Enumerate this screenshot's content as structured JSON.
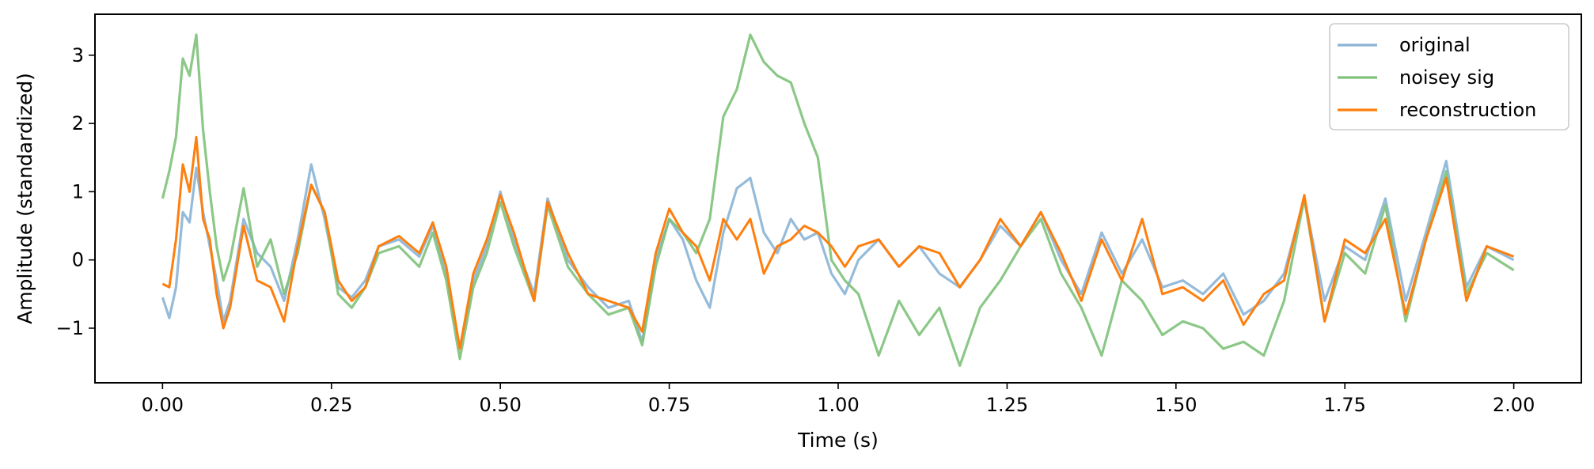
{
  "chart_data": {
    "type": "line",
    "title": "",
    "xlabel": "Time (s)",
    "ylabel": "Amplitude (standardized)",
    "xlim": [
      -0.1,
      2.1
    ],
    "ylim": [
      -1.8,
      3.6
    ],
    "xticks": [
      0.0,
      0.25,
      0.5,
      0.75,
      1.0,
      1.25,
      1.5,
      1.75,
      2.0
    ],
    "xtick_labels": [
      "0.00",
      "0.25",
      "0.50",
      "0.75",
      "1.00",
      "1.25",
      "1.50",
      "1.75",
      "2.00"
    ],
    "yticks": [
      -1,
      0,
      1,
      2,
      3
    ],
    "ytick_labels": [
      "−1",
      "0",
      "1",
      "2",
      "3"
    ],
    "grid": false,
    "legend_position": "top-right",
    "series": [
      {
        "name": "original",
        "color": "#8ab4d6",
        "x": [
          0,
          0.01,
          0.02,
          0.03,
          0.04,
          0.05,
          0.06,
          0.07,
          0.08,
          0.09,
          0.1,
          0.12,
          0.14,
          0.16,
          0.18,
          0.2,
          0.22,
          0.24,
          0.26,
          0.28,
          0.3,
          0.32,
          0.35,
          0.38,
          0.4,
          0.42,
          0.44,
          0.46,
          0.48,
          0.5,
          0.52,
          0.55,
          0.57,
          0.6,
          0.63,
          0.66,
          0.69,
          0.71,
          0.73,
          0.75,
          0.77,
          0.79,
          0.81,
          0.83,
          0.85,
          0.87,
          0.89,
          0.91,
          0.93,
          0.95,
          0.97,
          0.99,
          1.01,
          1.03,
          1.06,
          1.09,
          1.12,
          1.15,
          1.18,
          1.21,
          1.24,
          1.27,
          1.3,
          1.33,
          1.36,
          1.39,
          1.42,
          1.45,
          1.48,
          1.51,
          1.54,
          1.57,
          1.6,
          1.63,
          1.66,
          1.69,
          1.72,
          1.75,
          1.78,
          1.81,
          1.84,
          1.87,
          1.9,
          1.93,
          1.96,
          2.0
        ],
        "y": [
          -0.55,
          -0.85,
          -0.4,
          0.7,
          0.55,
          1.35,
          0.7,
          0.2,
          -0.3,
          -0.9,
          -0.6,
          0.6,
          0.1,
          -0.1,
          -0.6,
          0.3,
          1.4,
          0.6,
          -0.4,
          -0.55,
          -0.3,
          0.2,
          0.3,
          0.05,
          0.5,
          -0.2,
          -1.3,
          -0.3,
          0.2,
          1.0,
          0.3,
          -0.5,
          0.9,
          0.0,
          -0.4,
          -0.7,
          -0.6,
          -1.2,
          0.0,
          0.6,
          0.3,
          -0.3,
          -0.7,
          0.4,
          1.05,
          1.2,
          0.4,
          0.1,
          0.6,
          0.3,
          0.4,
          -0.2,
          -0.5,
          0.0,
          0.3,
          -0.1,
          0.2,
          -0.2,
          -0.4,
          0.0,
          0.5,
          0.2,
          0.7,
          0.0,
          -0.5,
          0.4,
          -0.2,
          0.3,
          -0.4,
          -0.3,
          -0.5,
          -0.2,
          -0.8,
          -0.6,
          -0.2,
          0.9,
          -0.6,
          0.2,
          0.0,
          0.9,
          -0.6,
          0.4,
          1.45,
          -0.4,
          0.2,
          0.0
        ]
      },
      {
        "name": "noisey sig",
        "color": "#7ec27a",
        "x": [
          0,
          0.01,
          0.02,
          0.03,
          0.04,
          0.05,
          0.06,
          0.07,
          0.08,
          0.09,
          0.1,
          0.12,
          0.14,
          0.16,
          0.18,
          0.2,
          0.22,
          0.24,
          0.26,
          0.28,
          0.3,
          0.32,
          0.35,
          0.38,
          0.4,
          0.42,
          0.44,
          0.46,
          0.48,
          0.5,
          0.52,
          0.55,
          0.57,
          0.6,
          0.63,
          0.66,
          0.69,
          0.71,
          0.73,
          0.75,
          0.77,
          0.79,
          0.81,
          0.83,
          0.85,
          0.87,
          0.89,
          0.91,
          0.93,
          0.95,
          0.97,
          0.99,
          1.01,
          1.03,
          1.06,
          1.09,
          1.12,
          1.15,
          1.18,
          1.21,
          1.24,
          1.27,
          1.3,
          1.33,
          1.36,
          1.39,
          1.42,
          1.45,
          1.48,
          1.51,
          1.54,
          1.57,
          1.6,
          1.63,
          1.66,
          1.69,
          1.72,
          1.75,
          1.78,
          1.81,
          1.84,
          1.87,
          1.9,
          1.93,
          1.96,
          2.0
        ],
        "y": [
          0.9,
          1.3,
          1.8,
          2.95,
          2.7,
          3.3,
          1.9,
          1.0,
          0.2,
          -0.3,
          0.0,
          1.05,
          -0.1,
          0.3,
          -0.5,
          0.1,
          1.1,
          0.7,
          -0.5,
          -0.7,
          -0.4,
          0.1,
          0.2,
          -0.1,
          0.4,
          -0.3,
          -1.45,
          -0.4,
          0.1,
          0.85,
          0.2,
          -0.6,
          0.8,
          -0.1,
          -0.5,
          -0.8,
          -0.7,
          -1.25,
          -0.1,
          0.6,
          0.4,
          0.1,
          0.6,
          2.1,
          2.5,
          3.3,
          2.9,
          2.7,
          2.6,
          2.0,
          1.5,
          0.0,
          -0.3,
          -0.5,
          -1.4,
          -0.6,
          -1.1,
          -0.7,
          -1.55,
          -0.7,
          -0.3,
          0.2,
          0.6,
          -0.2,
          -0.7,
          -1.4,
          -0.3,
          -0.6,
          -1.1,
          -0.9,
          -1.0,
          -1.3,
          -1.2,
          -1.4,
          -0.6,
          0.9,
          -0.9,
          0.1,
          -0.2,
          0.8,
          -0.9,
          0.3,
          1.3,
          -0.5,
          0.1,
          -0.15
        ]
      },
      {
        "name": "reconstruction",
        "color": "#ff7f0e",
        "x": [
          0,
          0.01,
          0.02,
          0.03,
          0.04,
          0.05,
          0.06,
          0.07,
          0.08,
          0.09,
          0.1,
          0.12,
          0.14,
          0.16,
          0.18,
          0.2,
          0.22,
          0.24,
          0.26,
          0.28,
          0.3,
          0.32,
          0.35,
          0.38,
          0.4,
          0.42,
          0.44,
          0.46,
          0.48,
          0.5,
          0.52,
          0.55,
          0.57,
          0.6,
          0.63,
          0.66,
          0.69,
          0.71,
          0.73,
          0.75,
          0.77,
          0.79,
          0.81,
          0.83,
          0.85,
          0.87,
          0.89,
          0.91,
          0.93,
          0.95,
          0.97,
          0.99,
          1.01,
          1.03,
          1.06,
          1.09,
          1.12,
          1.15,
          1.18,
          1.21,
          1.24,
          1.27,
          1.3,
          1.33,
          1.36,
          1.39,
          1.42,
          1.45,
          1.48,
          1.51,
          1.54,
          1.57,
          1.6,
          1.63,
          1.66,
          1.69,
          1.72,
          1.75,
          1.78,
          1.81,
          1.84,
          1.87,
          1.9,
          1.93,
          1.96,
          2.0
        ],
        "y": [
          -0.35,
          -0.4,
          0.3,
          1.4,
          1.0,
          1.8,
          0.6,
          0.3,
          -0.5,
          -1.0,
          -0.7,
          0.5,
          -0.3,
          -0.4,
          -0.9,
          0.2,
          1.1,
          0.7,
          -0.3,
          -0.6,
          -0.4,
          0.2,
          0.35,
          0.1,
          0.55,
          -0.1,
          -1.3,
          -0.2,
          0.3,
          0.95,
          0.4,
          -0.6,
          0.85,
          0.1,
          -0.5,
          -0.6,
          -0.7,
          -1.05,
          0.1,
          0.75,
          0.4,
          0.2,
          -0.3,
          0.6,
          0.3,
          0.6,
          -0.2,
          0.2,
          0.3,
          0.5,
          0.4,
          0.2,
          -0.1,
          0.2,
          0.3,
          -0.1,
          0.2,
          0.1,
          -0.4,
          0.0,
          0.6,
          0.2,
          0.7,
          0.1,
          -0.6,
          0.3,
          -0.3,
          0.6,
          -0.5,
          -0.4,
          -0.6,
          -0.3,
          -0.95,
          -0.5,
          -0.3,
          0.95,
          -0.9,
          0.3,
          0.1,
          0.6,
          -0.8,
          0.3,
          1.2,
          -0.6,
          0.2,
          0.05
        ]
      }
    ]
  }
}
